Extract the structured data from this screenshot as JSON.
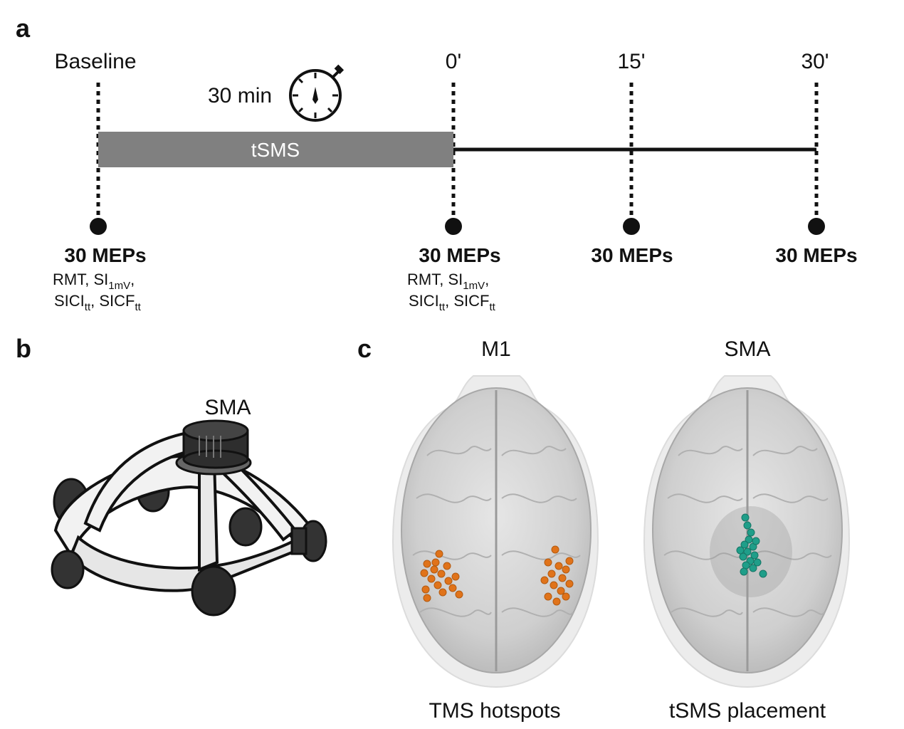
{
  "panels": {
    "a": {
      "letter": "a",
      "timepoints": [
        {
          "label": "Baseline",
          "mep_title": "30 MEPs",
          "has_sub": true
        },
        {
          "label": "0'",
          "mep_title": "30 MEPs",
          "has_sub": true
        },
        {
          "label": "15'",
          "mep_title": "30 MEPs",
          "has_sub": false
        },
        {
          "label": "30'",
          "mep_title": "30 MEPs",
          "has_sub": false
        }
      ],
      "intervention_label": "tSMS",
      "duration_label": "30 min",
      "sub_measures": {
        "rmt": "RMT, ",
        "si": "SI",
        "si_sub": "1mV",
        "comma": ",",
        "sici": "SICI",
        "sici_sub": "tt",
        "sep": ", ",
        "sicf": "SICF",
        "sicf_sub": "tt"
      },
      "colors": {
        "bar": "#808080",
        "line": "#111111"
      }
    },
    "b": {
      "letter": "b",
      "helmet_label": "SMA",
      "colors": {
        "frame": "#f2f2f2",
        "outline": "#1a1a1a",
        "knob": "#333333"
      }
    },
    "c": {
      "letter": "c",
      "brains": [
        {
          "region": "M1",
          "caption": "TMS hotspots",
          "dot_color": "#e0731a"
        },
        {
          "region": "SMA",
          "caption": "tSMS placement",
          "dot_color": "#1f9e89"
        }
      ],
      "colors": {
        "head": "#ececec",
        "brain": "#c8c8c8"
      }
    }
  }
}
